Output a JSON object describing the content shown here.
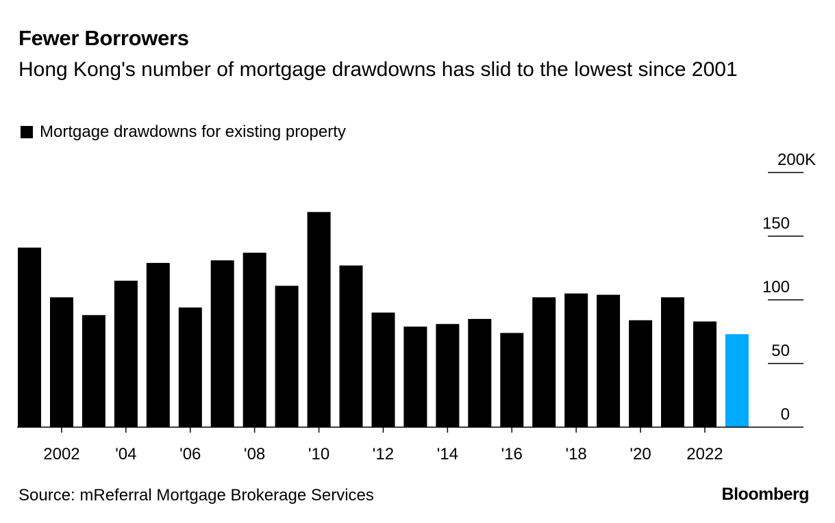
{
  "chart_data": {
    "type": "bar",
    "title": "Fewer Borrowers",
    "subtitle": "Hong Kong's number of mortgage drawdowns has slid to the lowest since 2001",
    "legend": [
      {
        "name": "Mortgage drawdowns for existing property",
        "color": "#000000"
      }
    ],
    "x_tick_labels": [
      "2002",
      "'04",
      "'06",
      "'08",
      "'10",
      "'12",
      "'14",
      "'16",
      "'18",
      "'20",
      "2022"
    ],
    "x_tick_years": [
      2002,
      2004,
      2006,
      2008,
      2010,
      2012,
      2014,
      2016,
      2018,
      2020,
      2022
    ],
    "y_tick_labels": [
      "0",
      "50",
      "100",
      "150",
      "200K"
    ],
    "y_tick_values": [
      0,
      50,
      100,
      150,
      200
    ],
    "ylim": [
      0,
      200
    ],
    "grid": false,
    "y_axis_side": "right",
    "years": [
      2001,
      2002,
      2003,
      2004,
      2005,
      2006,
      2007,
      2008,
      2009,
      2010,
      2011,
      2012,
      2013,
      2014,
      2015,
      2016,
      2017,
      2018,
      2019,
      2020,
      2021,
      2022,
      2023
    ],
    "values": [
      141,
      102,
      88,
      115,
      129,
      94,
      131,
      137,
      111,
      169,
      127,
      90,
      79,
      81,
      85,
      74,
      102,
      105,
      104,
      84,
      102,
      83,
      73
    ],
    "bar_color": "#000000",
    "highlight_color": "#00aaff",
    "highlight_index": 22,
    "source": "Source: mReferral Mortgage Brokerage Services",
    "brand": "Bloomberg"
  }
}
